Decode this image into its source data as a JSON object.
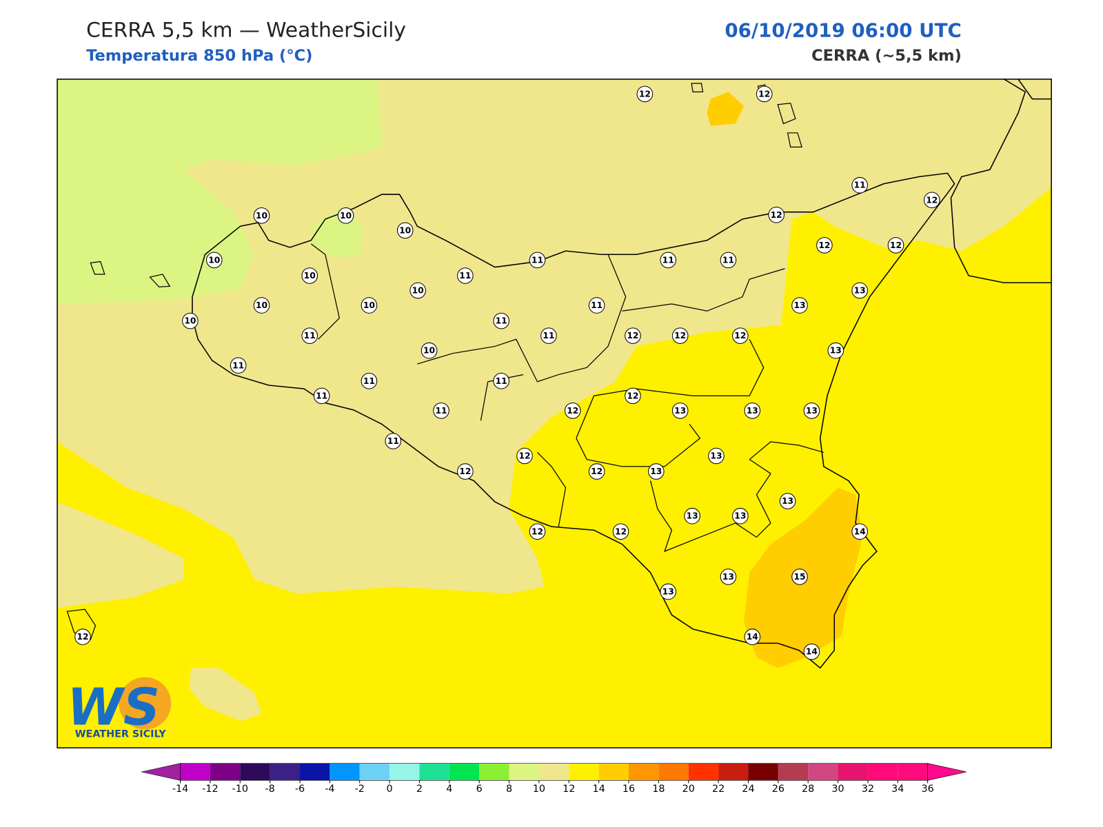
{
  "header": {
    "title": "CERRA 5,5 km — WeatherSicily",
    "subtitle": "Temperatura 850 hPa (°C)",
    "datetime": "06/10/2019 06:00 UTC",
    "model": "CERRA (~5,5 km)"
  },
  "logo": {
    "mark": "WS",
    "name": "WEATHER SICILY"
  },
  "stations": [
    12,
    12,
    11,
    12,
    12,
    10,
    10,
    10,
    10,
    11,
    11,
    11,
    12,
    12,
    10,
    10,
    11,
    13,
    10,
    10,
    11,
    13,
    10,
    11,
    11,
    11,
    12,
    12,
    12,
    10,
    13,
    11,
    11,
    11,
    11,
    11,
    12,
    12,
    13,
    13,
    13,
    11,
    13,
    12,
    12,
    12,
    13,
    13,
    13,
    13,
    14,
    12,
    12,
    13,
    15,
    13,
    14,
    14,
    12
  ],
  "colorbar": {
    "ticks": [
      -14,
      -12,
      -10,
      -8,
      -6,
      -4,
      -2,
      0,
      2,
      4,
      6,
      8,
      10,
      12,
      14,
      16,
      18,
      20,
      22,
      24,
      26,
      28,
      30,
      32,
      34,
      36
    ],
    "colors": [
      "#c000c8",
      "#7d0087",
      "#2d0a5a",
      "#3a2185",
      "#0a14a8",
      "#0096ff",
      "#6ed2f7",
      "#96f5e6",
      "#1ee196",
      "#00e650",
      "#8cf032",
      "#dcf582",
      "#f0e68c",
      "#fff000",
      "#ffcd00",
      "#ff9600",
      "#ff7800",
      "#ff3200",
      "#c81e0f",
      "#780000",
      "#b43c50",
      "#d24682",
      "#e6146e",
      "#ff0a78",
      "#ff0a7d"
    ],
    "under": "#a0229f",
    "over": "#ff0a8c"
  }
}
